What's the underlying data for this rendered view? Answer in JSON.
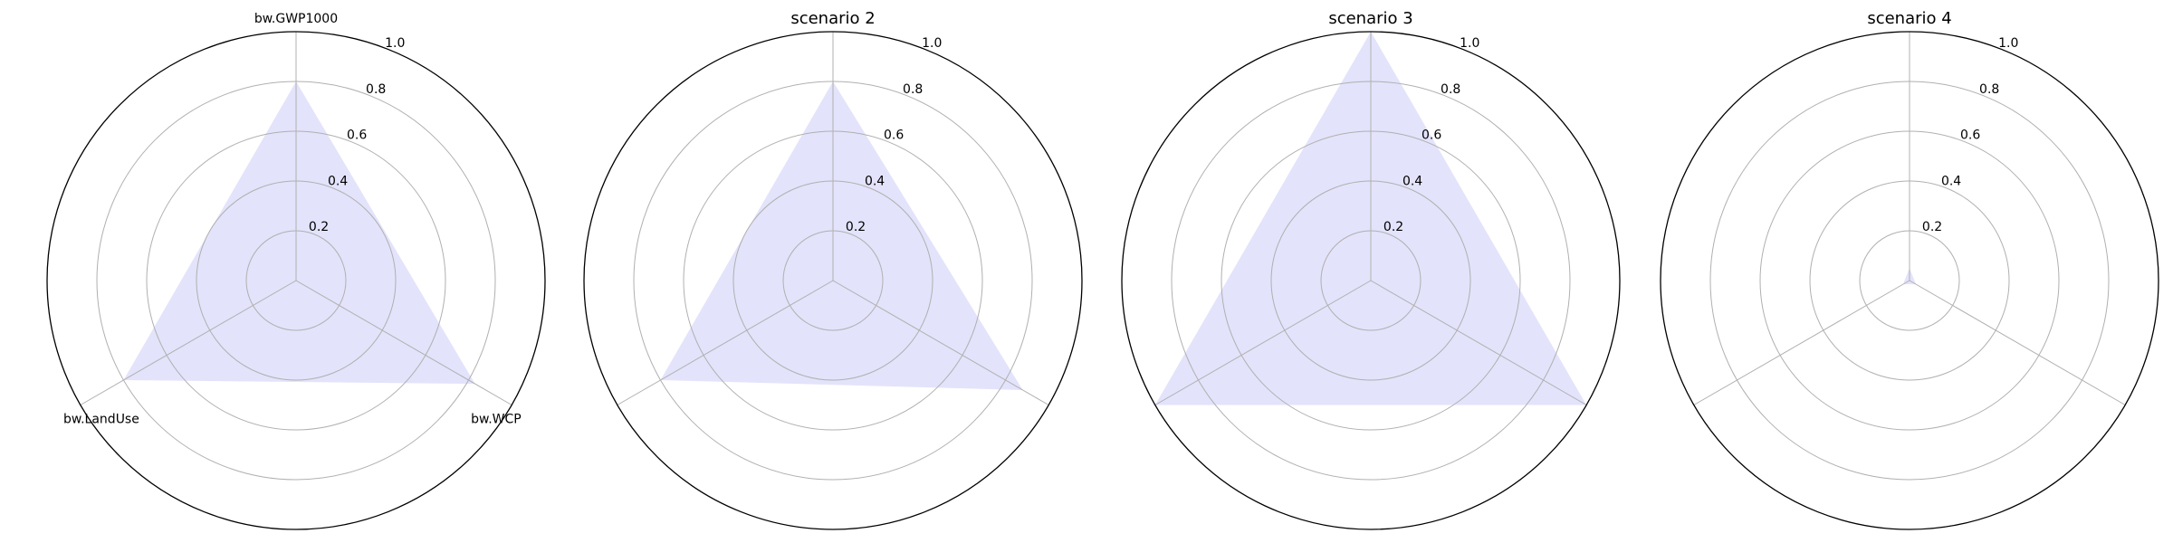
{
  "colors": {
    "fill": "#e3e3fb",
    "grid": "#b0b0b0",
    "frame": "#000000"
  },
  "chart_data": [
    {
      "type": "radar",
      "title": "",
      "axes": [
        "bw.GWP1000",
        "bw.WCP",
        "bw.LandUse"
      ],
      "radial_ticks": [
        0.2,
        0.4,
        0.6,
        0.8,
        1.0
      ],
      "radial_tick_labels": [
        "0.2",
        "0.4",
        "0.6",
        "0.8",
        "1.0"
      ],
      "rlim": [
        0,
        1.0
      ],
      "values": [
        0.8,
        0.83,
        0.8
      ],
      "grid": true
    },
    {
      "type": "radar",
      "title": "scenario 2",
      "axes": [],
      "radial_ticks": [
        0.2,
        0.4,
        0.6,
        0.8,
        1.0
      ],
      "radial_tick_labels": [
        "0.2",
        "0.4",
        "0.6",
        "0.8",
        "1.0"
      ],
      "rlim": [
        0,
        1.0
      ],
      "values": [
        0.8,
        0.88,
        0.8
      ],
      "grid": true
    },
    {
      "type": "radar",
      "title": "scenario 3",
      "axes": [],
      "radial_ticks": [
        0.2,
        0.4,
        0.6,
        0.8,
        1.0
      ],
      "radial_tick_labels": [
        "0.2",
        "0.4",
        "0.6",
        "0.8",
        "1.0"
      ],
      "rlim": [
        0,
        1.0
      ],
      "values": [
        1.0,
        1.0,
        1.0
      ],
      "grid": true
    },
    {
      "type": "radar",
      "title": "scenario 4",
      "axes": [],
      "radial_ticks": [
        0.2,
        0.4,
        0.6,
        0.8,
        1.0
      ],
      "radial_tick_labels": [
        "0.2",
        "0.4",
        "0.6",
        "0.8",
        "1.0"
      ],
      "rlim": [
        0,
        1.0
      ],
      "values": [
        0.05,
        0.03,
        0.03
      ],
      "grid": true
    }
  ]
}
